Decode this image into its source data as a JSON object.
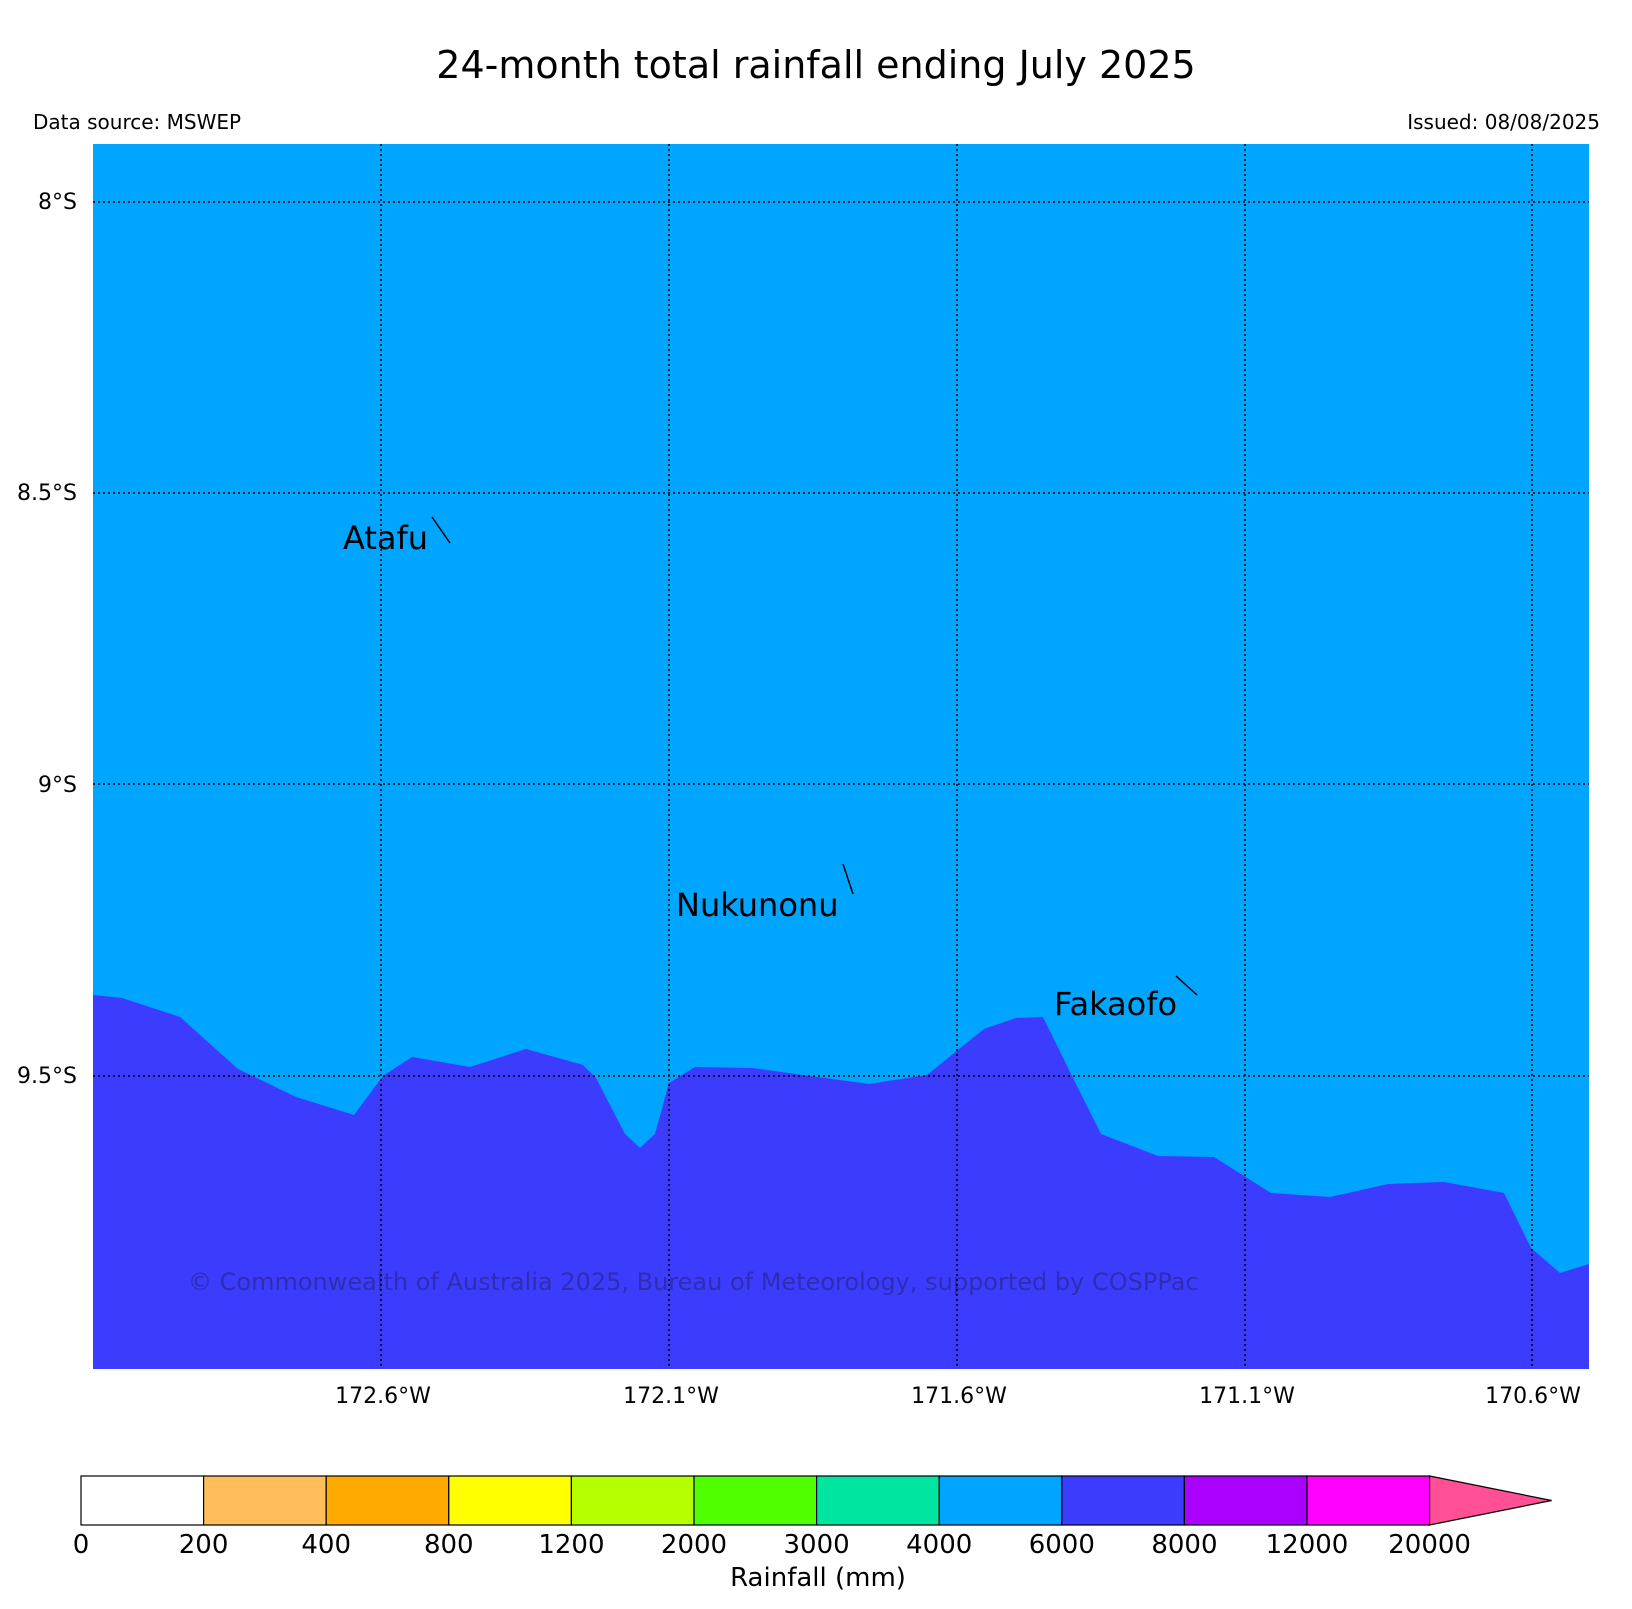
{
  "title": "24-month total rainfall ending July 2025",
  "source": "Data source: MSWEP",
  "issued": "Issued: 08/08/2025",
  "copyright": "© Commonwealth of Australia 2025, Bureau of Meteorology, supported by COSPPac",
  "map": {
    "lat_labels": [
      "8°S",
      "8.5°S",
      "9°S",
      "9.5°S"
    ],
    "lon_labels": [
      "172.6°W",
      "172.1°W",
      "171.6°W",
      "171.1°W",
      "170.6°W"
    ],
    "places": [
      {
        "name": "Atafu"
      },
      {
        "name": "Nukunonu"
      },
      {
        "name": "Fakaofo"
      }
    ],
    "fill_colors": {
      "band_4000_6000": "#00a5ff",
      "band_6000_8000": "#3c3cff"
    }
  },
  "legend": {
    "label": "Rainfall (mm)",
    "ticks": [
      "0",
      "200",
      "400",
      "800",
      "1200",
      "2000",
      "3000",
      "4000",
      "6000",
      "8000",
      "12000",
      "20000"
    ],
    "colors": [
      "#ffffff",
      "#ffbe5a",
      "#ffaa00",
      "#ffff00",
      "#b4ff00",
      "#50ff00",
      "#00e6a0",
      "#00a5ff",
      "#3c3cff",
      "#aa00ff",
      "#ff00ff",
      "#ff5096"
    ]
  }
}
